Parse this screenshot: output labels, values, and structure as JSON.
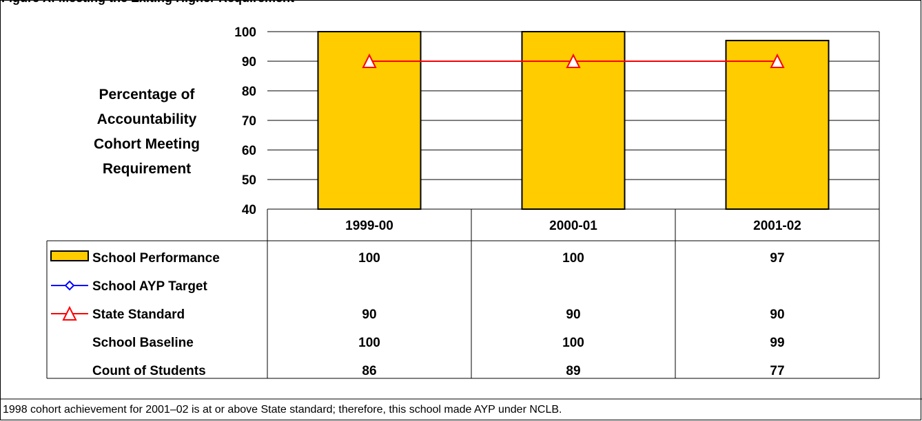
{
  "page": {
    "title": "Figure X: Meeting the Exiting Higher Requirement",
    "footnote": "1998 cohort achievement for 2001–02 is at or above State standard; therefore, this school made AYP under NCLB."
  },
  "chart_data": {
    "type": "bar",
    "title": "",
    "ylabel_lines": [
      "Percentage of",
      "Accountability",
      "Cohort Meeting",
      "Requirement"
    ],
    "categories": [
      "1999-00",
      "2000-01",
      "2001-02"
    ],
    "ylim": [
      40,
      100
    ],
    "yticks": [
      40,
      50,
      60,
      70,
      80,
      90,
      100
    ],
    "grid": true,
    "series": [
      {
        "name": "School Performance",
        "kind": "bar",
        "values": [
          100,
          100,
          97
        ],
        "color": "#FFCC00"
      },
      {
        "name": "School AYP Target",
        "kind": "line",
        "marker": "diamond",
        "values": [
          null,
          null,
          null
        ],
        "color": "#0000FF"
      },
      {
        "name": "State Standard",
        "kind": "line",
        "marker": "triangle",
        "values": [
          90,
          90,
          90
        ],
        "color": "#FF0000"
      }
    ],
    "table_rows": [
      {
        "label": "School Performance",
        "legend": "bar",
        "values": [
          "100",
          "100",
          "97"
        ]
      },
      {
        "label": "School AYP Target",
        "legend": "diamond-line",
        "values": [
          "",
          "",
          ""
        ]
      },
      {
        "label": "State Standard",
        "legend": "triangle-line",
        "values": [
          "90",
          "90",
          "90"
        ]
      },
      {
        "label": "School Baseline",
        "legend": "none",
        "values": [
          "100",
          "100",
          "99"
        ]
      },
      {
        "label": "Count of Students",
        "legend": "none",
        "values": [
          "86",
          "89",
          "77"
        ]
      }
    ]
  }
}
